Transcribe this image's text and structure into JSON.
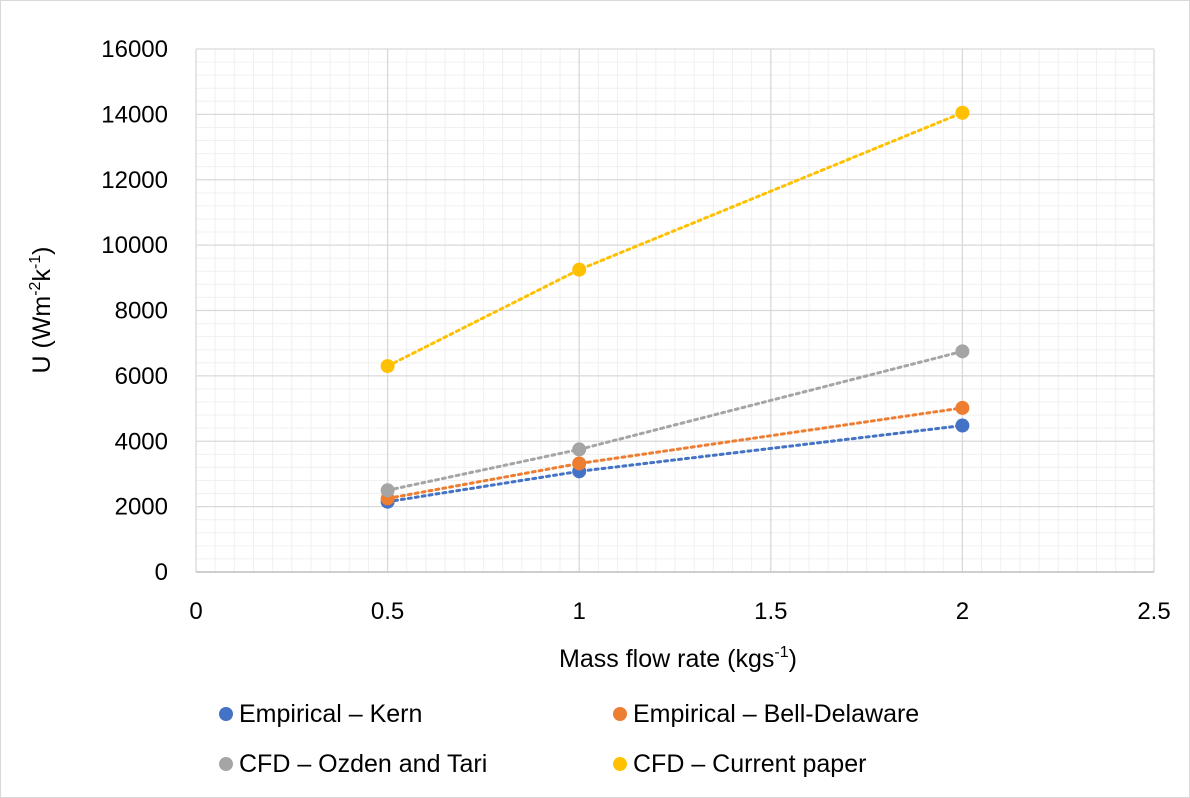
{
  "chart_data": {
    "type": "scatter",
    "title": "",
    "xlabel": "Mass flow rate (kgs",
    "xlabel_sup": "-1",
    "xlabel_end": ")",
    "ylabel": "U (Wm",
    "ylabel_sup1": "-2",
    "ylabel_mid": "k",
    "ylabel_sup2": "-1",
    "ylabel_end": ")",
    "xlim": [
      0,
      2.5
    ],
    "ylim": [
      0,
      16000
    ],
    "x_ticks": [
      "0",
      "0.5",
      "1",
      "1.5",
      "2",
      "2.5"
    ],
    "y_ticks": [
      "0",
      "2000",
      "4000",
      "6000",
      "8000",
      "10000",
      "12000",
      "14000",
      "16000"
    ],
    "grid": true,
    "legend_position": "bottom",
    "series": [
      {
        "name": "Empirical – Kern",
        "color": "#4472C4",
        "x": [
          0.5,
          1,
          2
        ],
        "y": [
          2150,
          3080,
          4480
        ]
      },
      {
        "name": "Empirical – Bell-Delaware",
        "color": "#ED7D31",
        "x": [
          0.5,
          1,
          2
        ],
        "y": [
          2250,
          3320,
          5020
        ]
      },
      {
        "name": "CFD – Ozden and Tari",
        "color": "#A5A5A5",
        "x": [
          0.5,
          1,
          2
        ],
        "y": [
          2500,
          3750,
          6750
        ]
      },
      {
        "name": "CFD – Current paper",
        "color": "#FFC000",
        "x": [
          0.5,
          1,
          2
        ],
        "y": [
          6300,
          9250,
          14050
        ]
      }
    ]
  }
}
